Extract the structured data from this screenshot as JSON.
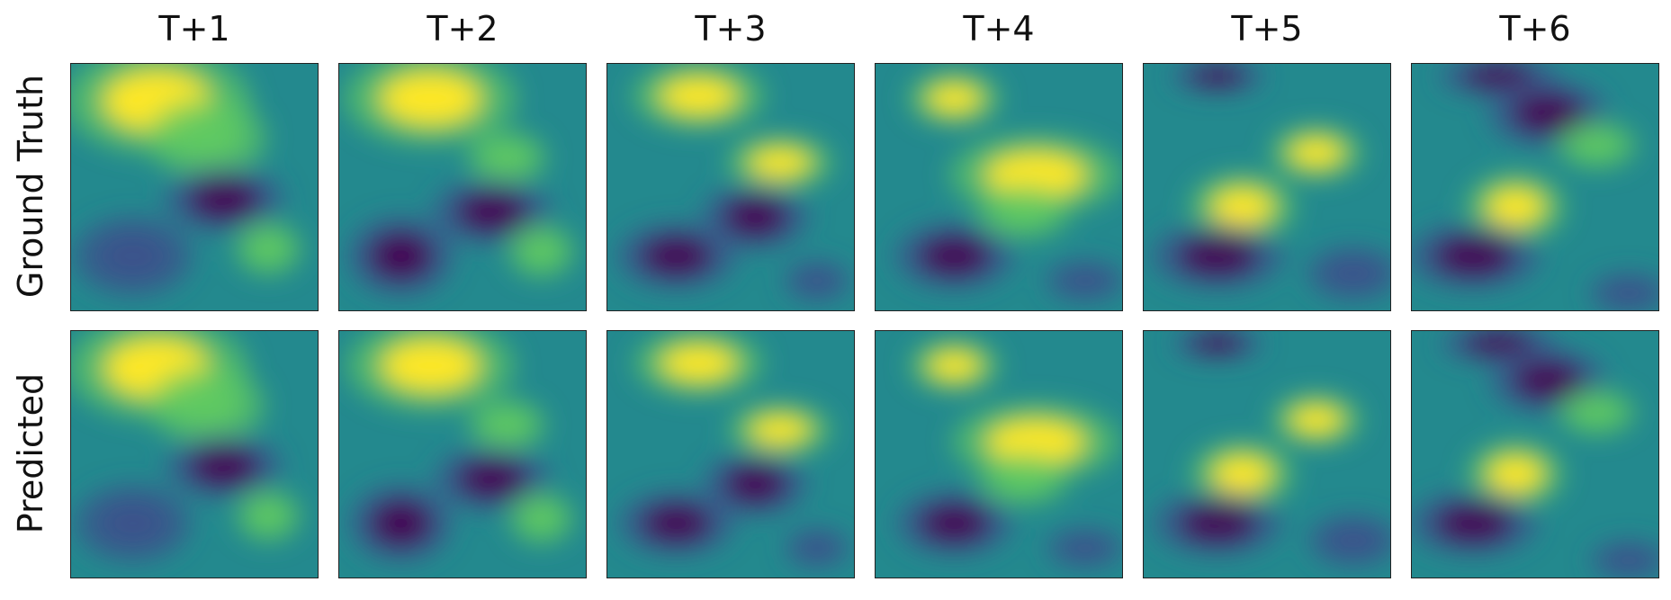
{
  "columns": [
    "T+1",
    "T+2",
    "T+3",
    "T+4",
    "T+5",
    "T+6"
  ],
  "rows": [
    "Ground Truth",
    "Predicted"
  ],
  "colormap": [
    "#440154",
    "#3b528b",
    "#21918c",
    "#5ec962",
    "#fde725"
  ],
  "background_color": "#23898e"
}
